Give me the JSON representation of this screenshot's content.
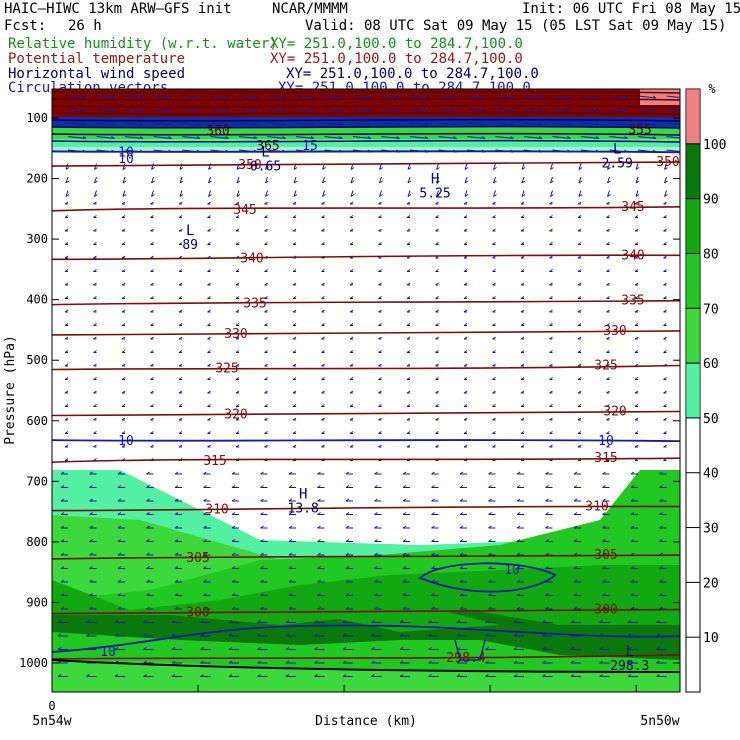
{
  "header": {
    "model": "HAIC–HIWC 13km ARW–GFS init",
    "center": "NCAR/MMMM",
    "init": "Init: 06 UTC Fri 08 May 15",
    "fcst_label": "Fcst:",
    "fcst_value": "26 h",
    "valid": "Valid: 08 UTC Sat 09 May 15 (05 LST Sat 09 May 15)"
  },
  "fields": [
    {
      "name": "Relative humidity (w.r.t. water)",
      "xy": "XY= 251.0,100.0 to 284.7,100.0",
      "color": "#1a8c1a"
    },
    {
      "name": "Potential temperature",
      "xy": "XY= 251.0,100.0 to 284.7,100.0",
      "color": "#8b1a1a"
    },
    {
      "name": "Horizontal wind speed",
      "xy": "XY= 251.0,100.0 to 284.7,100.0",
      "color": "#000060"
    },
    {
      "name": "Circulation vectors",
      "xy": "XY= 251.0,100.0 to 284.7,100.0",
      "color": "#1a1aa0"
    }
  ],
  "chart_data": {
    "type": "heatmap",
    "ylabel": "Pressure (hPa)",
    "xlabel": "Distance (km)",
    "x_start_label": "5n54w",
    "x_end_label": "5n50w",
    "x_zero": "0",
    "y_ticks": [
      100,
      200,
      300,
      400,
      500,
      600,
      700,
      800,
      900,
      1000
    ],
    "ylim": [
      1050,
      70
    ],
    "colorbar": {
      "unit": "%",
      "ticks": [
        10,
        20,
        30,
        40,
        50,
        60,
        70,
        80,
        90,
        100
      ],
      "bands": [
        {
          "lo": 50,
          "hi": 60,
          "color": "#52f0a0"
        },
        {
          "lo": 60,
          "hi": 70,
          "color": "#3cd83c"
        },
        {
          "lo": 70,
          "hi": 80,
          "color": "#22c822"
        },
        {
          "lo": 80,
          "hi": 90,
          "color": "#12a812"
        },
        {
          "lo": 90,
          "hi": 100,
          "color": "#0a780a"
        },
        {
          "lo": 100,
          "hi": 110,
          "color": "#f08080"
        }
      ]
    },
    "theta_contours": [
      {
        "value": "350",
        "p": 176
      },
      {
        "value": "345",
        "p": 250
      },
      {
        "value": "340",
        "p": 330
      },
      {
        "value": "335",
        "p": 405
      },
      {
        "value": "330",
        "p": 455
      },
      {
        "value": "325",
        "p": 512
      },
      {
        "value": "320",
        "p": 588
      },
      {
        "value": "315",
        "p": 665
      },
      {
        "value": "310",
        "p": 745
      },
      {
        "value": "305",
        "p": 825
      },
      {
        "value": "300",
        "p": 915
      },
      {
        "value": "298.4",
        "p": 990
      }
    ],
    "wind_contours": [
      {
        "value": "10",
        "p": 155
      },
      {
        "value": "10",
        "p": 632
      },
      {
        "value": "10",
        "p": 960
      }
    ],
    "extrema": [
      {
        "type": "L",
        "value": "89",
        "x": 0.22,
        "p": 300
      },
      {
        "type": "H",
        "value": "5.25",
        "x": 0.61,
        "p": 215
      },
      {
        "type": "L",
        "value": "0.65",
        "x": 0.34,
        "p": 170
      },
      {
        "type": "L",
        "value": "2.59",
        "x": 0.9,
        "p": 165
      },
      {
        "type": "H",
        "value": "13.8",
        "x": 0.4,
        "p": 735
      },
      {
        "type": "L",
        "value": "298.3",
        "x": 0.92,
        "p": 995
      }
    ],
    "upper_labels": [
      "360",
      "365",
      "355",
      "15",
      "10"
    ]
  }
}
